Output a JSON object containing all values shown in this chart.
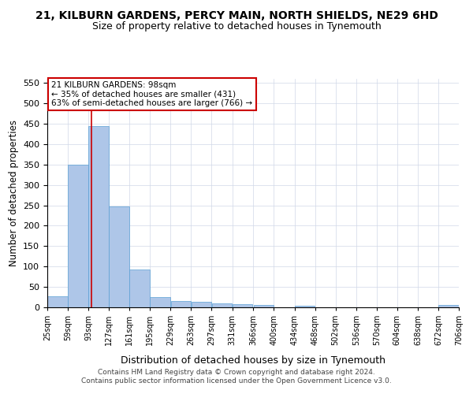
{
  "title": "21, KILBURN GARDENS, PERCY MAIN, NORTH SHIELDS, NE29 6HD",
  "subtitle": "Size of property relative to detached houses in Tynemouth",
  "xlabel": "Distribution of detached houses by size in Tynemouth",
  "ylabel": "Number of detached properties",
  "bin_edges": [
    25,
    59,
    93,
    127,
    161,
    195,
    229,
    263,
    297,
    331,
    366,
    400,
    434,
    468,
    502,
    536,
    570,
    604,
    638,
    672,
    706
  ],
  "bar_heights": [
    27,
    350,
    445,
    248,
    93,
    25,
    15,
    13,
    10,
    7,
    6,
    0,
    4,
    0,
    0,
    0,
    0,
    0,
    0,
    5
  ],
  "bar_color": "#aec6e8",
  "bar_edge_color": "#5a9fd4",
  "vline_x": 98,
  "vline_color": "#cc0000",
  "ylim": [
    0,
    560
  ],
  "yticks": [
    0,
    50,
    100,
    150,
    200,
    250,
    300,
    350,
    400,
    450,
    500,
    550
  ],
  "annotation_box_text": "21 KILBURN GARDENS: 98sqm\n← 35% of detached houses are smaller (431)\n63% of semi-detached houses are larger (766) →",
  "annotation_box_color": "#cc0000",
  "footer_line1": "Contains HM Land Registry data © Crown copyright and database right 2024.",
  "footer_line2": "Contains public sector information licensed under the Open Government Licence v3.0.",
  "background_color": "#ffffff",
  "grid_color": "#d0d8e8"
}
